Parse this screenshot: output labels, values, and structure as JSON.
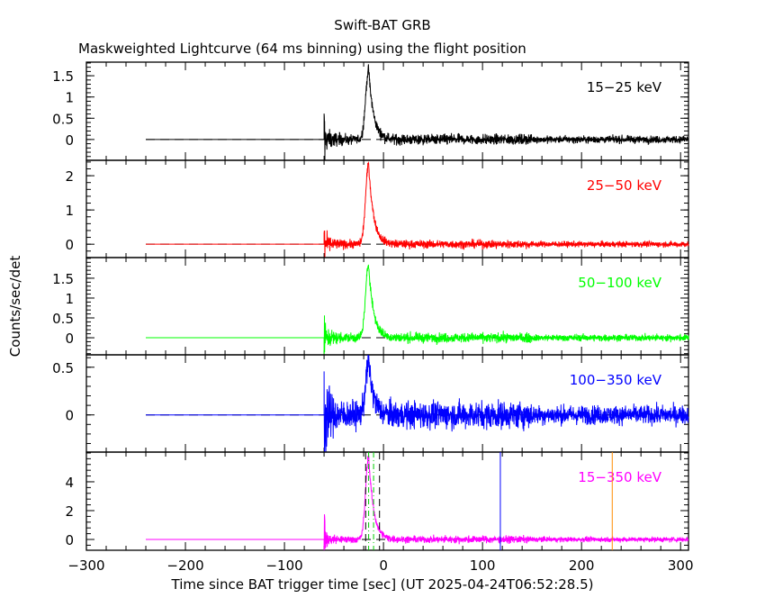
{
  "chart_data": {
    "type": "line",
    "title": "Swift-BAT GRB",
    "subtitle": "Maskweighted Lightcurve (64 ms binning) using the flight position",
    "xlabel": "Time since BAT trigger time [sec] (UT 2025-04-24T06:52:28.5)",
    "ylabel": "Counts/sec/det",
    "xlim": [
      -300,
      308
    ],
    "x_ticks": [
      -300,
      -200,
      -100,
      0,
      100,
      200,
      300
    ],
    "x_tick_labels": [
      "−300",
      "−200",
      "−100",
      "0",
      "100",
      "200",
      "300"
    ],
    "data_start": -240,
    "noisy_start": -60,
    "peak_time": -15,
    "panels": [
      {
        "name": "15-25 keV",
        "label": "15−25 keV",
        "color": "#000000",
        "ylim": [
          -0.49,
          1.82
        ],
        "yticks": [
          0,
          0.5,
          1,
          1.5
        ],
        "ytick_labels": [
          "0",
          "0.5",
          "1",
          "1.5"
        ],
        "peak": 1.65,
        "noise": 0.06,
        "start_spike": 0.4
      },
      {
        "name": "25-50 keV",
        "label": "25−50 keV",
        "color": "#ff0000",
        "ylim": [
          -0.39,
          2.45
        ],
        "yticks": [
          0,
          1,
          2
        ],
        "ytick_labels": [
          "0",
          "1",
          "2"
        ],
        "peak": 2.35,
        "noise": 0.06,
        "start_spike": 0.3
      },
      {
        "name": "50-100 keV",
        "label": "50−100 keV",
        "color": "#00ff00",
        "ylim": [
          -0.43,
          2.02
        ],
        "yticks": [
          0,
          0.5,
          1,
          1.5
        ],
        "ytick_labels": [
          "0",
          "0.5",
          "1",
          "1.5"
        ],
        "peak": 1.85,
        "noise": 0.06,
        "start_spike": 0.35
      },
      {
        "name": "100-350 keV",
        "label": "100−350 keV",
        "color": "#0000ff",
        "ylim": [
          -0.39,
          0.63
        ],
        "yticks": [
          0,
          0.5
        ],
        "ytick_labels": [
          "0",
          "0.5"
        ],
        "peak": 0.55,
        "noise": 0.07,
        "start_spike": 0.3
      },
      {
        "name": "15-350 keV",
        "label": "15−350 keV",
        "color": "#ff00ff",
        "ylim": [
          -0.75,
          6.06
        ],
        "yticks": [
          0,
          2,
          4
        ],
        "ytick_labels": [
          "0",
          "2",
          "4"
        ],
        "peak": 5.8,
        "noise": 0.12,
        "start_spike": 1.2
      }
    ],
    "markers": {
      "t90_window": [
        -18,
        -4
      ],
      "t50_window": [
        -15,
        -10
      ],
      "blue_line": 118,
      "orange_line": 231
    },
    "colors": {
      "t90": "#000000",
      "t50": "#00cc00",
      "blue": "#0000ff",
      "orange": "#ff8c00"
    }
  }
}
